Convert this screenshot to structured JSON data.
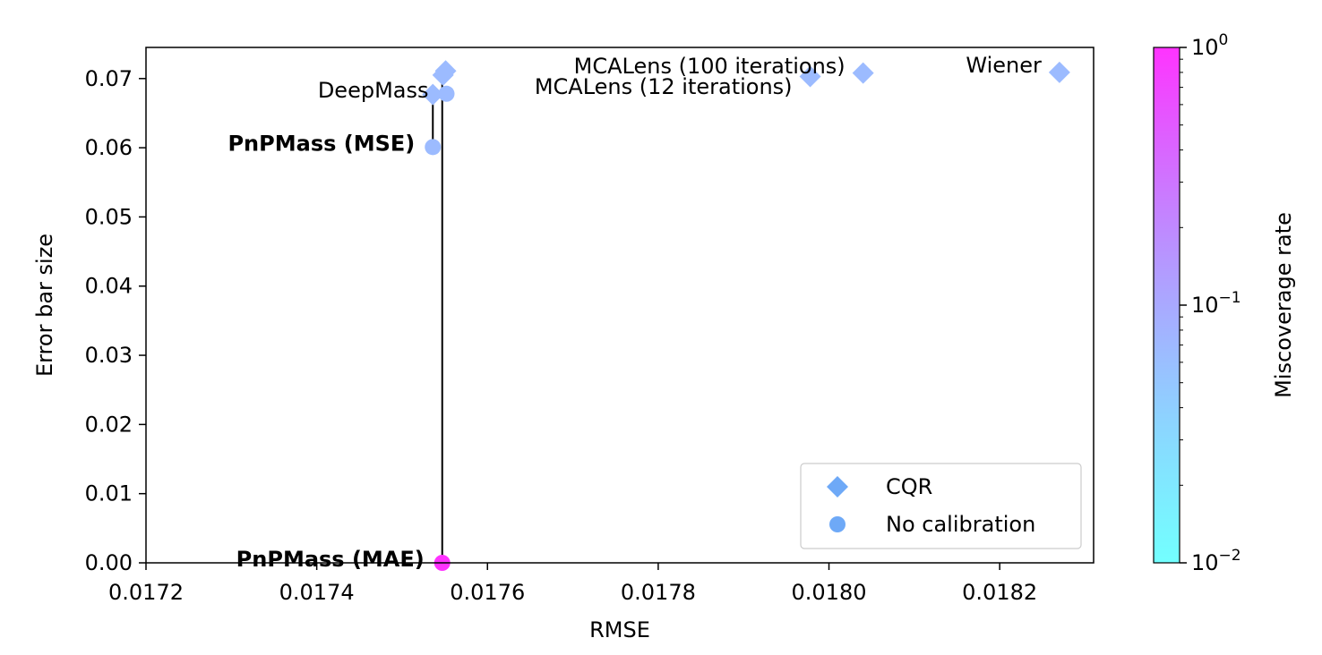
{
  "chart_data": {
    "type": "scatter",
    "xlabel": "RMSE",
    "ylabel": "Error bar size",
    "xlim": [
      0.0172,
      0.01831
    ],
    "ylim": [
      0.0,
      0.0745
    ],
    "xticks": [
      {
        "value": 0.0172,
        "label": "0.0172"
      },
      {
        "value": 0.0174,
        "label": "0.0174"
      },
      {
        "value": 0.0176,
        "label": "0.0176"
      },
      {
        "value": 0.0178,
        "label": "0.0178"
      },
      {
        "value": 0.018,
        "label": "0.0180"
      },
      {
        "value": 0.0182,
        "label": "0.0182"
      }
    ],
    "yticks": [
      {
        "value": 0.0,
        "label": "0.00"
      },
      {
        "value": 0.01,
        "label": "0.01"
      },
      {
        "value": 0.02,
        "label": "0.02"
      },
      {
        "value": 0.03,
        "label": "0.03"
      },
      {
        "value": 0.04,
        "label": "0.04"
      },
      {
        "value": 0.05,
        "label": "0.05"
      },
      {
        "value": 0.06,
        "label": "0.06"
      },
      {
        "value": 0.07,
        "label": "0.07"
      }
    ],
    "grid": false,
    "legend_position": "bottom-right",
    "series": [
      {
        "name": "CQR",
        "marker": "diamond",
        "legend_color": "#6ea9f7",
        "points": [
          {
            "x": 0.017551,
            "y": 0.0711,
            "miscoverage": 0.065
          },
          {
            "x": 0.017536,
            "y": 0.0677,
            "miscoverage": 0.065
          },
          {
            "x": 0.017548,
            "y": 0.0705,
            "miscoverage": 0.065
          },
          {
            "x": 0.017978,
            "y": 0.0703,
            "miscoverage": 0.065
          },
          {
            "x": 0.01804,
            "y": 0.0708,
            "miscoverage": 0.065
          },
          {
            "x": 0.01827,
            "y": 0.0709,
            "miscoverage": 0.065
          }
        ]
      },
      {
        "name": "No calibration",
        "marker": "circle",
        "legend_color": "#6ea9f7",
        "points": [
          {
            "x": 0.017552,
            "y": 0.0678,
            "miscoverage": 0.065
          },
          {
            "x": 0.017536,
            "y": 0.0601,
            "miscoverage": 0.065
          },
          {
            "x": 0.017547,
            "y": 0.0,
            "miscoverage": 1.0
          }
        ]
      }
    ],
    "vlines": [
      {
        "x": 0.017536,
        "y0": 0.0601,
        "y1": 0.0677
      },
      {
        "x": 0.017547,
        "y0": 0.0,
        "y1": 0.0705
      }
    ],
    "annotations": [
      {
        "text": "DeepMass",
        "x": 0.017552,
        "y": 0.0683,
        "bold": false
      },
      {
        "text": "PnPMass (MSE)",
        "x": 0.017536,
        "y": 0.0606,
        "bold": true
      },
      {
        "text": "PnPMass (MAE)",
        "x": 0.017547,
        "y": 0.0005,
        "bold": true
      },
      {
        "text": "MCALens (12 iterations)",
        "x": 0.017978,
        "y": 0.0688,
        "bold": false
      },
      {
        "text": "MCALens (100 iterations)",
        "x": 0.01804,
        "y": 0.0718,
        "bold": false
      },
      {
        "text": "Wiener",
        "x": 0.01827,
        "y": 0.0719,
        "bold": false
      }
    ],
    "colorbar": {
      "label": "Miscoverage rate",
      "scale": "log",
      "range": [
        0.01,
        1.0
      ],
      "colormap": "cool",
      "ticks": [
        {
          "value": 0.01,
          "base": "10",
          "exp": "−2"
        },
        {
          "value": 0.1,
          "base": "10",
          "exp": "−1"
        },
        {
          "value": 1.0,
          "base": "10",
          "exp": "0"
        }
      ]
    }
  }
}
